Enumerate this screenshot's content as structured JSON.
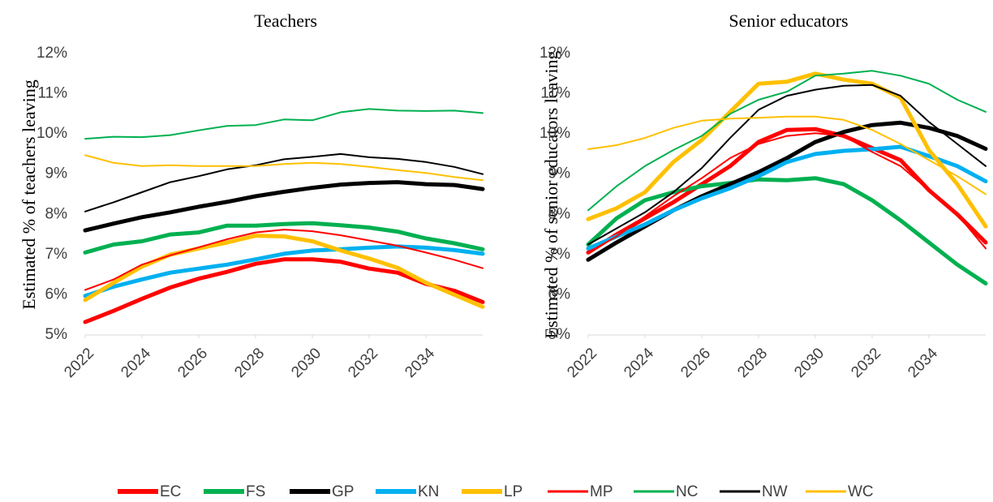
{
  "chart_data": [
    {
      "type": "line",
      "title": "Teachers",
      "ylabel": "Estimated % of teachers leaving",
      "x": [
        2022,
        2023,
        2024,
        2025,
        2026,
        2027,
        2028,
        2029,
        2030,
        2031,
        2032,
        2033,
        2034,
        2035,
        2036
      ],
      "xlim": [
        2022,
        2036
      ],
      "xticks": [
        2022,
        2024,
        2026,
        2028,
        2030,
        2032,
        2034
      ],
      "ylim": [
        5,
        12
      ],
      "yticks": [
        {
          "value": 5,
          "label": "5%"
        },
        {
          "value": 6,
          "label": "6%"
        },
        {
          "value": 7,
          "label": "7%"
        },
        {
          "value": 8,
          "label": "8%"
        },
        {
          "value": 9,
          "label": "9%"
        },
        {
          "value": 10,
          "label": "10%"
        },
        {
          "value": 11,
          "label": "11%"
        },
        {
          "value": 12,
          "label": "12%"
        }
      ],
      "legend": "bottom",
      "series": [
        {
          "name": "EC",
          "color": "#ff0000",
          "width": 5,
          "values": [
            5.32,
            5.6,
            5.9,
            6.18,
            6.4,
            6.57,
            6.77,
            6.88,
            6.88,
            6.82,
            6.65,
            6.55,
            6.27,
            6.1,
            5.82
          ]
        },
        {
          "name": "FS",
          "color": "#00b050",
          "width": 5,
          "values": [
            7.05,
            7.25,
            7.33,
            7.5,
            7.55,
            7.72,
            7.72,
            7.76,
            7.78,
            7.73,
            7.67,
            7.57,
            7.4,
            7.28,
            7.13
          ]
        },
        {
          "name": "GP",
          "color": "#000000",
          "width": 5,
          "values": [
            7.6,
            7.77,
            7.93,
            8.05,
            8.19,
            8.31,
            8.45,
            8.56,
            8.66,
            8.74,
            8.78,
            8.8,
            8.75,
            8.73,
            8.63
          ]
        },
        {
          "name": "KN",
          "color": "#00b0f0",
          "width": 5,
          "values": [
            5.97,
            6.2,
            6.38,
            6.55,
            6.65,
            6.75,
            6.88,
            7.02,
            7.1,
            7.13,
            7.17,
            7.2,
            7.17,
            7.11,
            7.02
          ]
        },
        {
          "name": "LP",
          "color": "#ffc000",
          "width": 5,
          "values": [
            5.87,
            6.3,
            6.7,
            7.0,
            7.15,
            7.3,
            7.47,
            7.45,
            7.33,
            7.1,
            6.9,
            6.67,
            6.3,
            6.0,
            5.7
          ]
        },
        {
          "name": "MP",
          "color": "#ff0000",
          "width": 2,
          "values": [
            6.12,
            6.38,
            6.75,
            6.98,
            7.18,
            7.38,
            7.55,
            7.62,
            7.58,
            7.48,
            7.35,
            7.22,
            7.05,
            6.87,
            6.66
          ]
        },
        {
          "name": "NC",
          "color": "#00b050",
          "width": 2,
          "values": [
            9.88,
            9.93,
            9.92,
            9.97,
            10.09,
            10.2,
            10.22,
            10.36,
            10.34,
            10.54,
            10.62,
            10.58,
            10.57,
            10.58,
            10.52
          ]
        },
        {
          "name": "NW",
          "color": "#000000",
          "width": 2,
          "values": [
            8.07,
            8.3,
            8.55,
            8.8,
            8.95,
            9.12,
            9.22,
            9.37,
            9.43,
            9.5,
            9.42,
            9.38,
            9.3,
            9.18,
            9.0
          ]
        },
        {
          "name": "WC",
          "color": "#ffc000",
          "width": 2,
          "values": [
            9.47,
            9.28,
            9.2,
            9.22,
            9.2,
            9.2,
            9.2,
            9.25,
            9.28,
            9.25,
            9.18,
            9.1,
            9.03,
            8.93,
            8.85
          ]
        }
      ]
    },
    {
      "type": "line",
      "title": "Senior educators",
      "ylabel": "Estimated % of senior educators leaving",
      "x": [
        2022,
        2023,
        2024,
        2025,
        2026,
        2027,
        2028,
        2029,
        2030,
        2031,
        2032,
        2033,
        2034,
        2035,
        2036
      ],
      "xlim": [
        2022,
        2036
      ],
      "xticks": [
        2022,
        2024,
        2026,
        2028,
        2030,
        2032,
        2034
      ],
      "ylim": [
        5,
        12
      ],
      "yticks": [
        {
          "value": 5,
          "label": "5%"
        },
        {
          "value": 6,
          "label": "6%"
        },
        {
          "value": 7,
          "label": "7%"
        },
        {
          "value": 8,
          "label": "8%"
        },
        {
          "value": 9,
          "label": "9%"
        },
        {
          "value": 10,
          "label": "10%"
        },
        {
          "value": 11,
          "label": "11%"
        },
        {
          "value": 12,
          "label": "12%"
        }
      ],
      "series": [
        {
          "name": "EC",
          "color": "#ff0000",
          "width": 5,
          "values": [
            7.05,
            7.5,
            7.9,
            8.3,
            8.75,
            9.2,
            9.8,
            10.1,
            10.12,
            9.95,
            9.65,
            9.35,
            8.6,
            8.0,
            7.3
          ]
        },
        {
          "name": "FS",
          "color": "#00b050",
          "width": 5,
          "values": [
            7.25,
            7.9,
            8.35,
            8.55,
            8.7,
            8.78,
            8.87,
            8.85,
            8.9,
            8.75,
            8.35,
            7.85,
            7.3,
            6.75,
            6.28
          ]
        },
        {
          "name": "GP",
          "color": "#000000",
          "width": 5,
          "values": [
            6.87,
            7.3,
            7.7,
            8.1,
            8.45,
            8.75,
            9.05,
            9.4,
            9.8,
            10.05,
            10.22,
            10.28,
            10.15,
            9.95,
            9.63
          ]
        },
        {
          "name": "KN",
          "color": "#00b0f0",
          "width": 5,
          "values": [
            7.15,
            7.45,
            7.75,
            8.1,
            8.4,
            8.65,
            8.95,
            9.3,
            9.5,
            9.58,
            9.62,
            9.68,
            9.45,
            9.2,
            8.82
          ]
        },
        {
          "name": "LP",
          "color": "#ffc000",
          "width": 5,
          "values": [
            7.88,
            8.15,
            8.55,
            9.3,
            9.85,
            10.55,
            11.25,
            11.3,
            11.5,
            11.35,
            11.25,
            10.9,
            9.6,
            8.75,
            7.7
          ]
        },
        {
          "name": "MP",
          "color": "#ff0000",
          "width": 2,
          "values": [
            7.05,
            7.45,
            7.95,
            8.45,
            8.9,
            9.4,
            9.75,
            9.95,
            10.02,
            9.95,
            9.55,
            9.2,
            8.6,
            8.0,
            7.15
          ]
        },
        {
          "name": "NC",
          "color": "#00b050",
          "width": 2,
          "values": [
            8.1,
            8.7,
            9.2,
            9.6,
            9.95,
            10.5,
            10.85,
            11.05,
            11.45,
            11.5,
            11.57,
            11.45,
            11.25,
            10.85,
            10.55
          ]
        },
        {
          "name": "NW",
          "color": "#000000",
          "width": 2,
          "values": [
            7.25,
            7.65,
            8.05,
            8.55,
            9.15,
            9.9,
            10.6,
            10.95,
            11.1,
            11.2,
            11.22,
            10.95,
            10.3,
            9.75,
            9.2
          ]
        },
        {
          "name": "WC",
          "color": "#ffc000",
          "width": 2,
          "values": [
            9.62,
            9.72,
            9.9,
            10.15,
            10.33,
            10.38,
            10.4,
            10.43,
            10.43,
            10.35,
            10.1,
            9.75,
            9.35,
            8.95,
            8.5
          ]
        }
      ]
    }
  ]
}
